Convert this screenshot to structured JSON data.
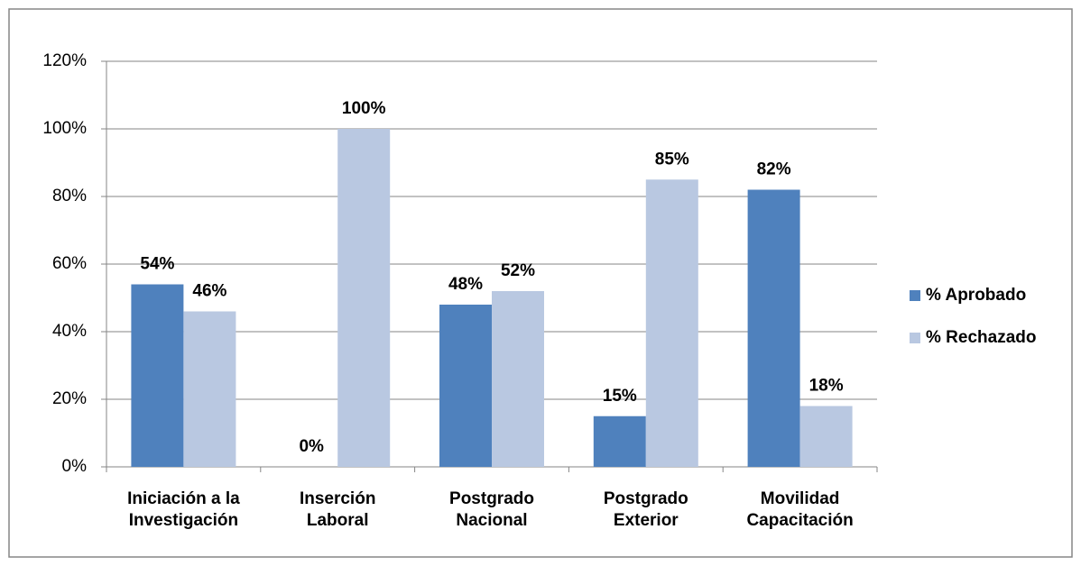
{
  "chart_data": {
    "type": "bar",
    "categories": [
      "Iniciación a la\nInvestigación",
      "Inserción\nLaboral",
      "Postgrado\nNacional",
      "Postgrado\nExterior",
      "Movilidad\nCapacitación"
    ],
    "series": [
      {
        "name": "% Aprobado",
        "color": "#4f81bd",
        "values": [
          54,
          0,
          48,
          15,
          82
        ],
        "value_labels": [
          "54%",
          "0%",
          "48%",
          "15%",
          "82%"
        ]
      },
      {
        "name": "% Rechazado",
        "color": "#b9c8e1",
        "values": [
          46,
          100,
          52,
          85,
          18
        ],
        "value_labels": [
          "46%",
          "100%",
          "52%",
          "85%",
          "18%"
        ]
      }
    ],
    "ylim": [
      0,
      120
    ],
    "yticks": [
      {
        "value": 0,
        "label": "0%"
      },
      {
        "value": 20,
        "label": "20%"
      },
      {
        "value": 40,
        "label": "40%"
      },
      {
        "value": 60,
        "label": "60%"
      },
      {
        "value": 80,
        "label": "80%"
      },
      {
        "value": 100,
        "label": "100%"
      },
      {
        "value": 120,
        "label": "120%"
      }
    ],
    "grid": true,
    "legend": "right"
  }
}
